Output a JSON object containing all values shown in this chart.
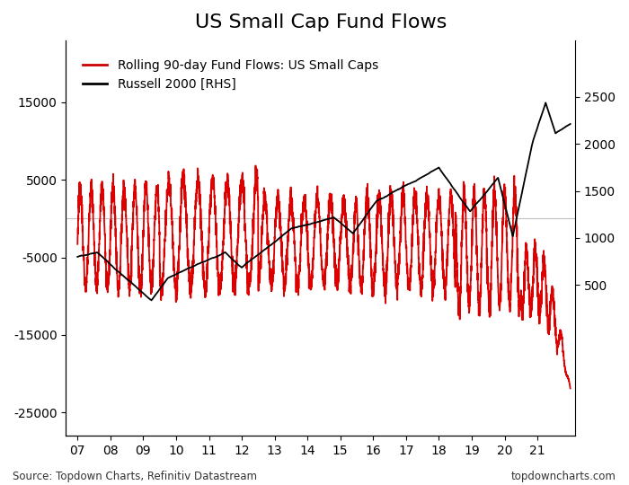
{
  "title": "US Small Cap Fund Flows",
  "legend_labels": [
    "Rolling 90-day Fund Flows: US Small Caps",
    "Russell 2000 [RHS]"
  ],
  "legend_colors": [
    "#cc0000",
    "#000000"
  ],
  "source_left": "Source: Topdown Charts, Refinitiv Datastream",
  "source_right": "topdowncharts.com",
  "left_ylim": [
    -28000,
    23000
  ],
  "left_yticks": [
    -25000,
    -15000,
    -5000,
    5000,
    15000
  ],
  "right_ylim": [
    -1100,
    3100
  ],
  "right_yticks": [
    500,
    1000,
    1500,
    2000,
    2500
  ],
  "xtick_labels": [
    "07",
    "08",
    "09",
    "10",
    "11",
    "12",
    "13",
    "14",
    "15",
    "16",
    "17",
    "18",
    "19",
    "20",
    "21"
  ],
  "background_color": "#ffffff",
  "grid_color": "#c0c0c0",
  "fund_flow_color": "#dd0000",
  "russell_color": "#000000",
  "fund_flow_linewidth": 1.3,
  "russell_linewidth": 1.3,
  "title_fontsize": 16,
  "tick_fontsize": 10,
  "legend_fontsize": 10,
  "source_fontsize": 8.5
}
